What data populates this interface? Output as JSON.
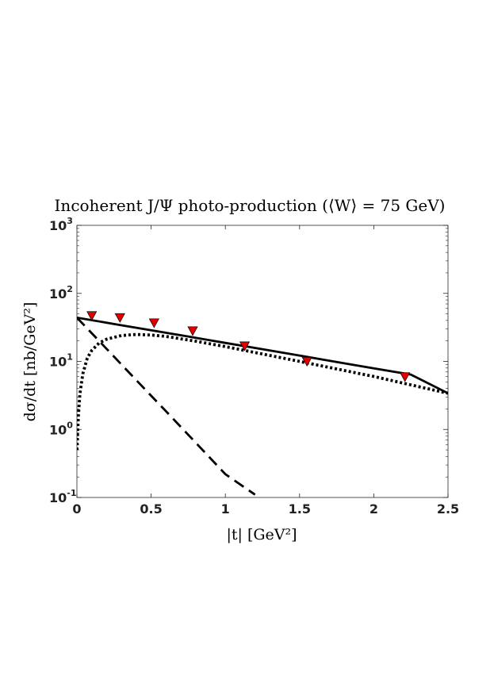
{
  "chart_data": {
    "type": "line",
    "title": "Incoherent J/Ψ photo-production (⟨W⟩ = 75 GeV)",
    "xlabel": "|t| [GeV²]",
    "ylabel": "dσ/dt [nb/GeV²]",
    "xlim": [
      0,
      2.5
    ],
    "ylim": [
      0.1,
      1000
    ],
    "yscale": "log",
    "grid": false,
    "x_ticks": [
      {
        "value": 0,
        "label": "0"
      },
      {
        "value": 0.5,
        "label": "0.5"
      },
      {
        "value": 1,
        "label": "1"
      },
      {
        "value": 1.5,
        "label": "1.5"
      },
      {
        "value": 2,
        "label": "2"
      },
      {
        "value": 2.5,
        "label": "2.5"
      }
    ],
    "y_ticks": [
      {
        "value": 0.1,
        "base": "10",
        "exp": "-1"
      },
      {
        "value": 1,
        "base": "10",
        "exp": "0"
      },
      {
        "value": 10,
        "base": "10",
        "exp": "1"
      },
      {
        "value": 100,
        "base": "10",
        "exp": "2"
      },
      {
        "value": 1000,
        "base": "10",
        "exp": "3"
      }
    ],
    "series": [
      {
        "style": "solid",
        "color": "#000000",
        "x": [
          0,
          0.25,
          0.5,
          0.75,
          1.0,
          1.25,
          1.5,
          1.75,
          2.0,
          2.25,
          2.5
        ],
        "y": [
          44,
          35.5,
          28.7,
          23.2,
          18.7,
          15.1,
          12.2,
          9.8,
          7.9,
          6.4,
          3.4
        ]
      },
      {
        "style": "dashed",
        "color": "#000000",
        "x": [
          0,
          0.2,
          0.4,
          0.6,
          0.8,
          1.0,
          1.2
        ],
        "y": [
          44,
          15.3,
          5.3,
          1.85,
          0.64,
          0.22,
          0.11
        ]
      },
      {
        "style": "dotted",
        "color": "#000000",
        "x": [
          0,
          0.01,
          0.02,
          0.04,
          0.07,
          0.1,
          0.15,
          0.2,
          0.3,
          0.4,
          0.5,
          0.6,
          0.8,
          1.0,
          1.5,
          2.0,
          2.5
        ],
        "y": [
          0.5,
          1.6,
          3.3,
          6.6,
          11.2,
          14.5,
          18.7,
          21.2,
          24.0,
          24.9,
          24.4,
          23.3,
          19.8,
          16.5,
          10.0,
          6.0,
          3.4
        ]
      },
      {
        "style": "markers",
        "marker": "triangle-down",
        "color": "#e00000",
        "x": [
          0.1,
          0.29,
          0.52,
          0.78,
          1.13,
          1.55,
          2.21
        ],
        "y": [
          46,
          43,
          36,
          27.5,
          16.5,
          9.8,
          5.8
        ]
      }
    ]
  }
}
